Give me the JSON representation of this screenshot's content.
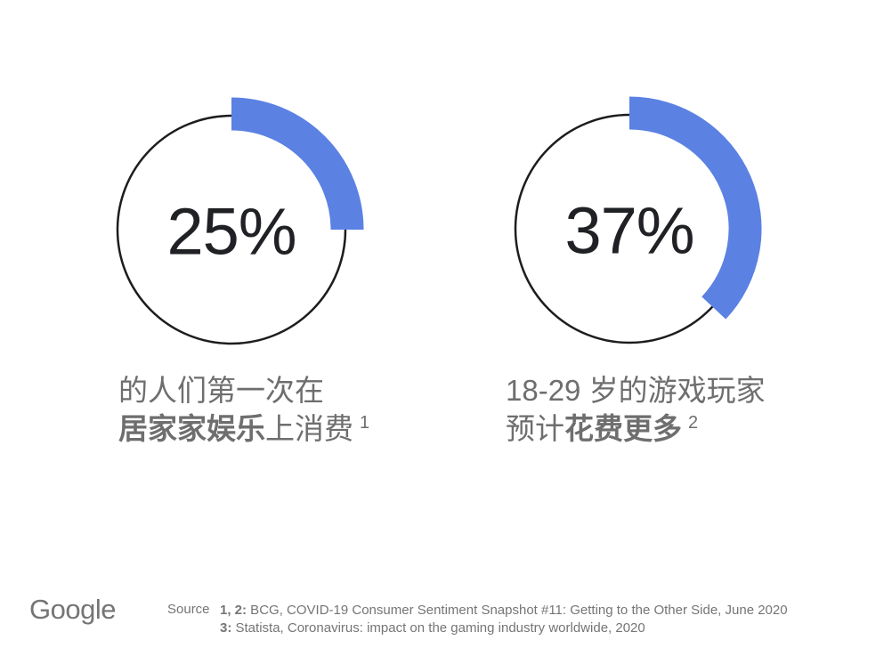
{
  "chart_data": [
    {
      "type": "pie",
      "subtype": "percent-ring",
      "percent": 25,
      "percent_label": "25%",
      "values": [
        25,
        75
      ],
      "slice_labels": [
        "highlighted share",
        "remainder"
      ],
      "ring_color": "#5b81e3",
      "arc_start_deg": 0,
      "arc_direction": "clockwise",
      "caption_line1": "的人们第一次在",
      "caption_line2_pre": "",
      "caption_line2_bold": "居家家娱乐",
      "caption_line2_rest": "上消费",
      "footnote_ref": "1"
    },
    {
      "type": "pie",
      "subtype": "percent-ring",
      "percent": 37,
      "percent_label": "37%",
      "values": [
        37,
        63
      ],
      "slice_labels": [
        "highlighted share",
        "remainder"
      ],
      "ring_color": "#5b81e3",
      "arc_start_deg": 0,
      "arc_direction": "clockwise",
      "caption_line1": "18-29 岁的游戏玩家",
      "caption_line2_pre": "预计",
      "caption_line2_bold": "花费更多",
      "caption_line2_rest": "",
      "footnote_ref": "2"
    }
  ],
  "footer": {
    "logo_text": "Google",
    "source_label": "Source",
    "lines": [
      {
        "ref": "1, 2:",
        "text": " BCG, COVID-19 Consumer Sentiment Snapshot #11: Getting to the Other Side, June 2020"
      },
      {
        "ref": "3:",
        "text": " Statista, Coronavirus: impact on the gaming industry worldwide, 2020"
      }
    ]
  },
  "colors": {
    "accent_blue": "#5b81e3",
    "ring_outline": "#1d1d1f",
    "percent_text": "#202124",
    "caption_gray": "#6e6e6e",
    "footer_gray": "#757575",
    "background": "#ffffff"
  }
}
